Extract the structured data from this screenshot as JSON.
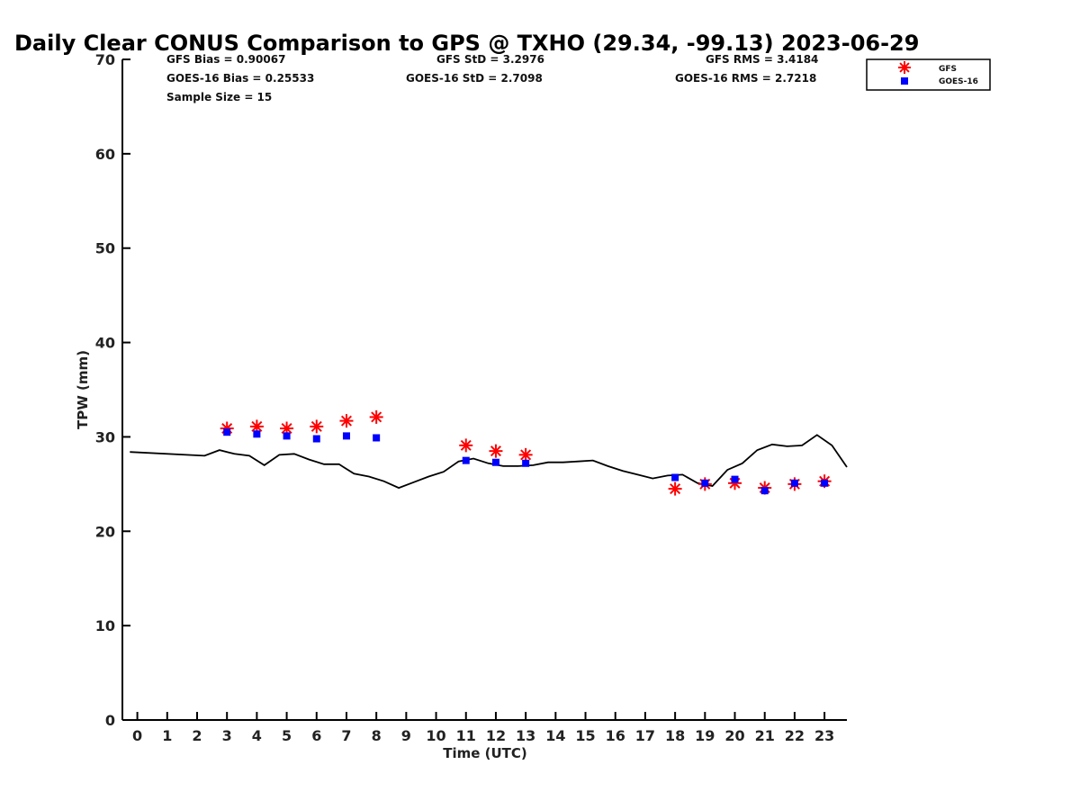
{
  "chart_data": {
    "type": "scatter",
    "title": "Daily Clear CONUS Comparison to GPS @ TXHO (29.34, -99.13) 2023-06-29",
    "xlabel": "Time (UTC)",
    "ylabel": "TPW (mm)",
    "xlim": [
      -0.5,
      23.75
    ],
    "ylim": [
      0,
      70
    ],
    "x_ticks": [
      0,
      1,
      2,
      3,
      4,
      5,
      6,
      7,
      8,
      9,
      10,
      11,
      12,
      13,
      14,
      15,
      16,
      17,
      18,
      19,
      20,
      21,
      22,
      23
    ],
    "y_ticks": [
      0,
      10,
      20,
      30,
      40,
      50,
      60,
      70
    ],
    "grid": false,
    "legend_position": "top-right",
    "stats": {
      "gfs_bias": "GFS Bias = 0.90067",
      "goes_bias": "GOES-16 Bias = 0.25533",
      "sample_size": "Sample Size = 15",
      "gfs_std": "GFS StD = 3.2976",
      "goes_std": "GOES-16 StD = 2.7098",
      "gfs_rms": "GFS RMS = 3.4184",
      "goes_rms": "GOES-16 RMS = 2.7218"
    },
    "series": [
      {
        "name": "GFS",
        "marker": "asterisk",
        "color": "#ff0000",
        "x": [
          3,
          4,
          5,
          6,
          7,
          8,
          11,
          12,
          13,
          18,
          19,
          20,
          21,
          22,
          23
        ],
        "y": [
          30.9,
          31.1,
          30.9,
          31.1,
          31.7,
          32.1,
          29.1,
          28.5,
          28.1,
          24.5,
          25.0,
          25.1,
          24.6,
          25.0,
          25.3
        ]
      },
      {
        "name": "GOES-16",
        "marker": "square",
        "color": "#0000ff",
        "x": [
          3,
          4,
          5,
          6,
          7,
          8,
          11,
          12,
          13,
          18,
          19,
          20,
          21,
          22,
          23
        ],
        "y": [
          30.5,
          30.3,
          30.1,
          29.8,
          30.1,
          29.9,
          27.5,
          27.3,
          27.2,
          25.7,
          25.1,
          25.5,
          24.3,
          25.1,
          25.1
        ]
      },
      {
        "name": "",
        "marker": "line",
        "color": "#000000",
        "x": [
          -0.25,
          2.25,
          2.75,
          3.25,
          3.75,
          4.25,
          4.75,
          5.25,
          5.75,
          6.25,
          6.75,
          7.25,
          7.75,
          8.25,
          8.75,
          9.25,
          9.75,
          10.25,
          10.75,
          11.25,
          11.75,
          12.25,
          12.75,
          13.25,
          13.75,
          14.25,
          14.75,
          15.25,
          15.75,
          16.25,
          16.75,
          17.25,
          17.75,
          18.25,
          18.75,
          19.25,
          19.75,
          20.25,
          20.75,
          21.25,
          21.75,
          22.25,
          22.75,
          23.25,
          23.75
        ],
        "y": [
          28.4,
          28.0,
          28.6,
          28.2,
          28.0,
          27.0,
          28.1,
          28.2,
          27.6,
          27.1,
          27.1,
          26.1,
          25.8,
          25.3,
          24.6,
          25.2,
          25.8,
          26.3,
          27.4,
          27.7,
          27.2,
          26.9,
          26.9,
          27.0,
          27.3,
          27.3,
          27.4,
          27.5,
          26.9,
          26.4,
          26.0,
          25.6,
          25.9,
          26.0,
          25.1,
          24.8,
          26.5,
          27.2,
          28.6,
          29.2,
          29.0,
          29.1,
          30.2,
          29.1,
          26.8
        ]
      }
    ]
  }
}
